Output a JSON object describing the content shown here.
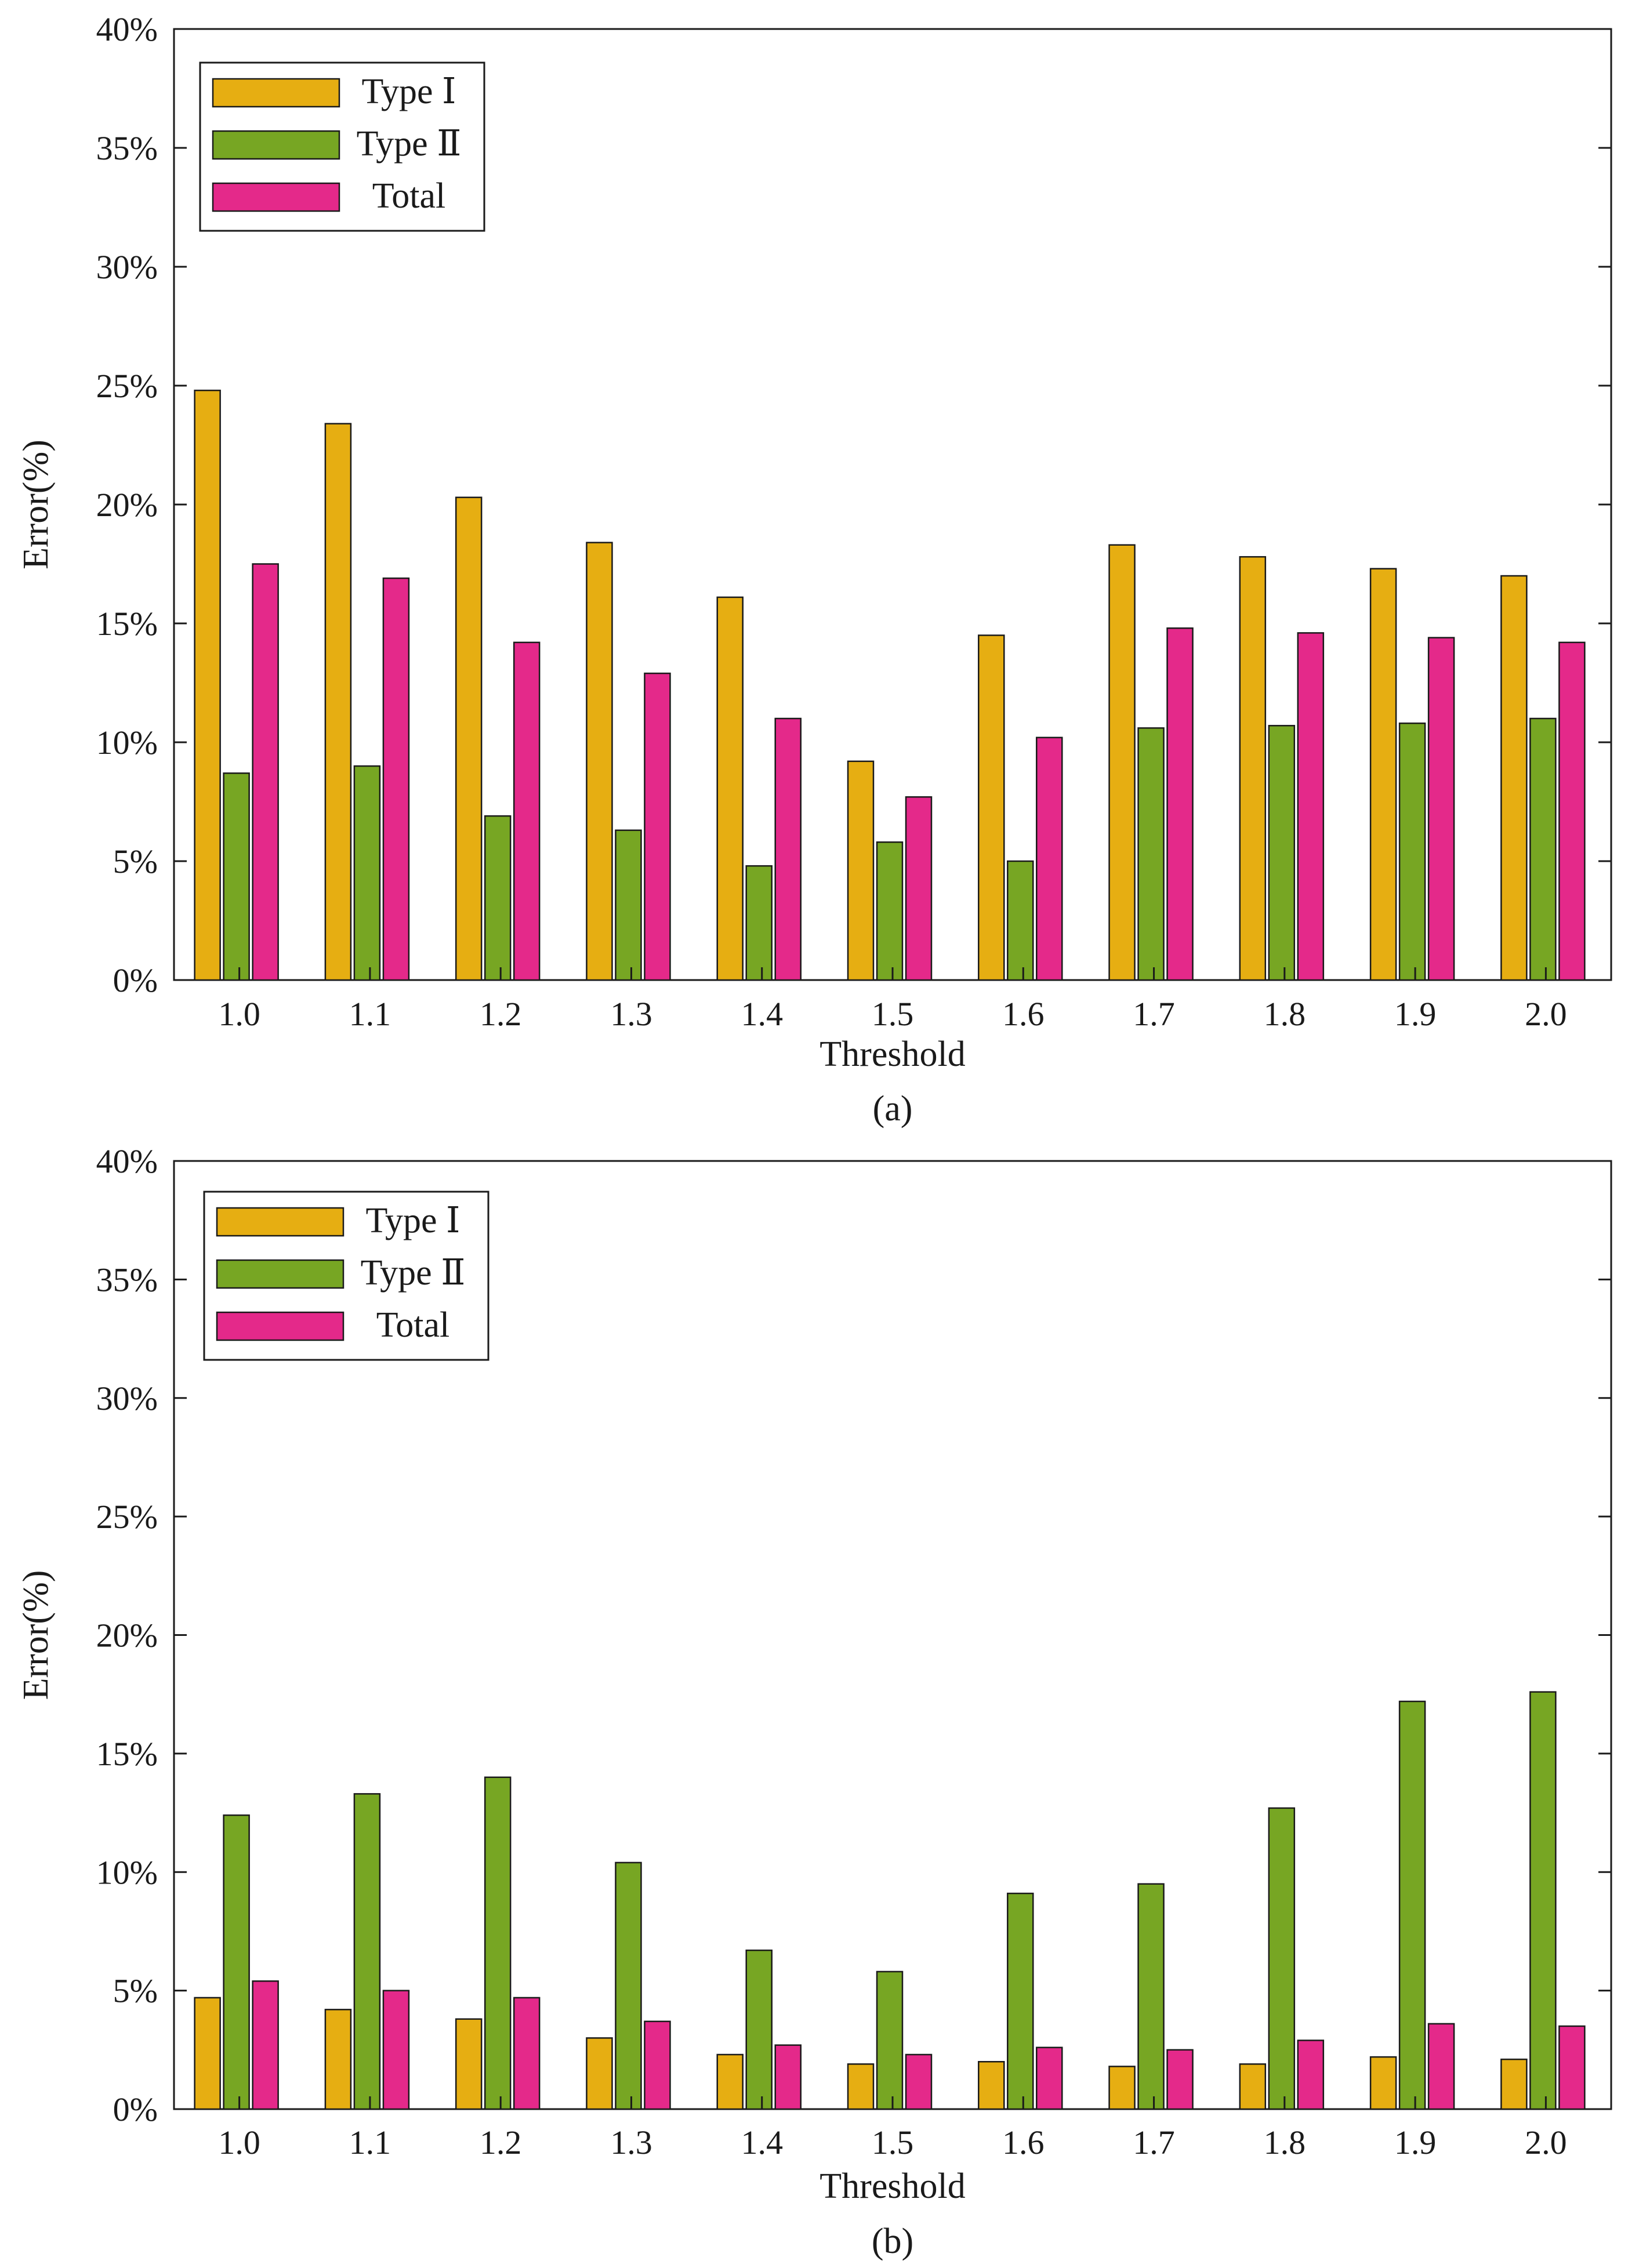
{
  "colors": {
    "type1": "#E6AE12",
    "type2": "#77A623",
    "total": "#E4298A",
    "axis": "#1a1a1a"
  },
  "chart_data": [
    {
      "type": "bar",
      "caption": "(a)",
      "xlabel": "Threshold",
      "ylabel": "Error(%)",
      "ylim": [
        0,
        40
      ],
      "yticks": [
        "0%",
        "5%",
        "10%",
        "15%",
        "20%",
        "25%",
        "30%",
        "35%",
        "40%"
      ],
      "categories": [
        "1.0",
        "1.1",
        "1.2",
        "1.3",
        "1.4",
        "1.5",
        "1.6",
        "1.7",
        "1.8",
        "1.9",
        "2.0"
      ],
      "legend_position": "top-left",
      "series": [
        {
          "name": "Type Ⅰ",
          "values": [
            24.8,
            23.4,
            20.3,
            18.4,
            16.1,
            9.2,
            14.5,
            18.3,
            17.8,
            17.3,
            17.0
          ]
        },
        {
          "name": "Type Ⅱ",
          "values": [
            8.7,
            9.0,
            6.9,
            6.3,
            4.8,
            5.8,
            5.0,
            10.6,
            10.7,
            10.8,
            11.0
          ]
        },
        {
          "name": "Total",
          "values": [
            17.5,
            16.9,
            14.2,
            12.9,
            11.0,
            7.7,
            10.2,
            14.8,
            14.6,
            14.4,
            14.2
          ]
        }
      ]
    },
    {
      "type": "bar",
      "caption": "(b)",
      "xlabel": "Threshold",
      "ylabel": "Error(%)",
      "ylim": [
        0,
        40
      ],
      "yticks": [
        "0%",
        "5%",
        "10%",
        "15%",
        "20%",
        "25%",
        "30%",
        "35%",
        "40%"
      ],
      "categories": [
        "1.0",
        "1.1",
        "1.2",
        "1.3",
        "1.4",
        "1.5",
        "1.6",
        "1.7",
        "1.8",
        "1.9",
        "2.0"
      ],
      "legend_position": "top-left",
      "series": [
        {
          "name": "Type Ⅰ",
          "values": [
            4.7,
            4.2,
            3.8,
            3.0,
            2.3,
            1.9,
            2.0,
            1.8,
            1.9,
            2.2,
            2.1
          ]
        },
        {
          "name": "Type Ⅱ",
          "values": [
            12.4,
            13.3,
            14.0,
            10.4,
            6.7,
            5.8,
            9.1,
            9.5,
            12.7,
            17.2,
            17.6
          ]
        },
        {
          "name": "Total",
          "values": [
            5.4,
            5.0,
            4.7,
            3.7,
            2.7,
            2.3,
            2.6,
            2.5,
            2.9,
            3.6,
            3.5
          ]
        }
      ]
    }
  ]
}
